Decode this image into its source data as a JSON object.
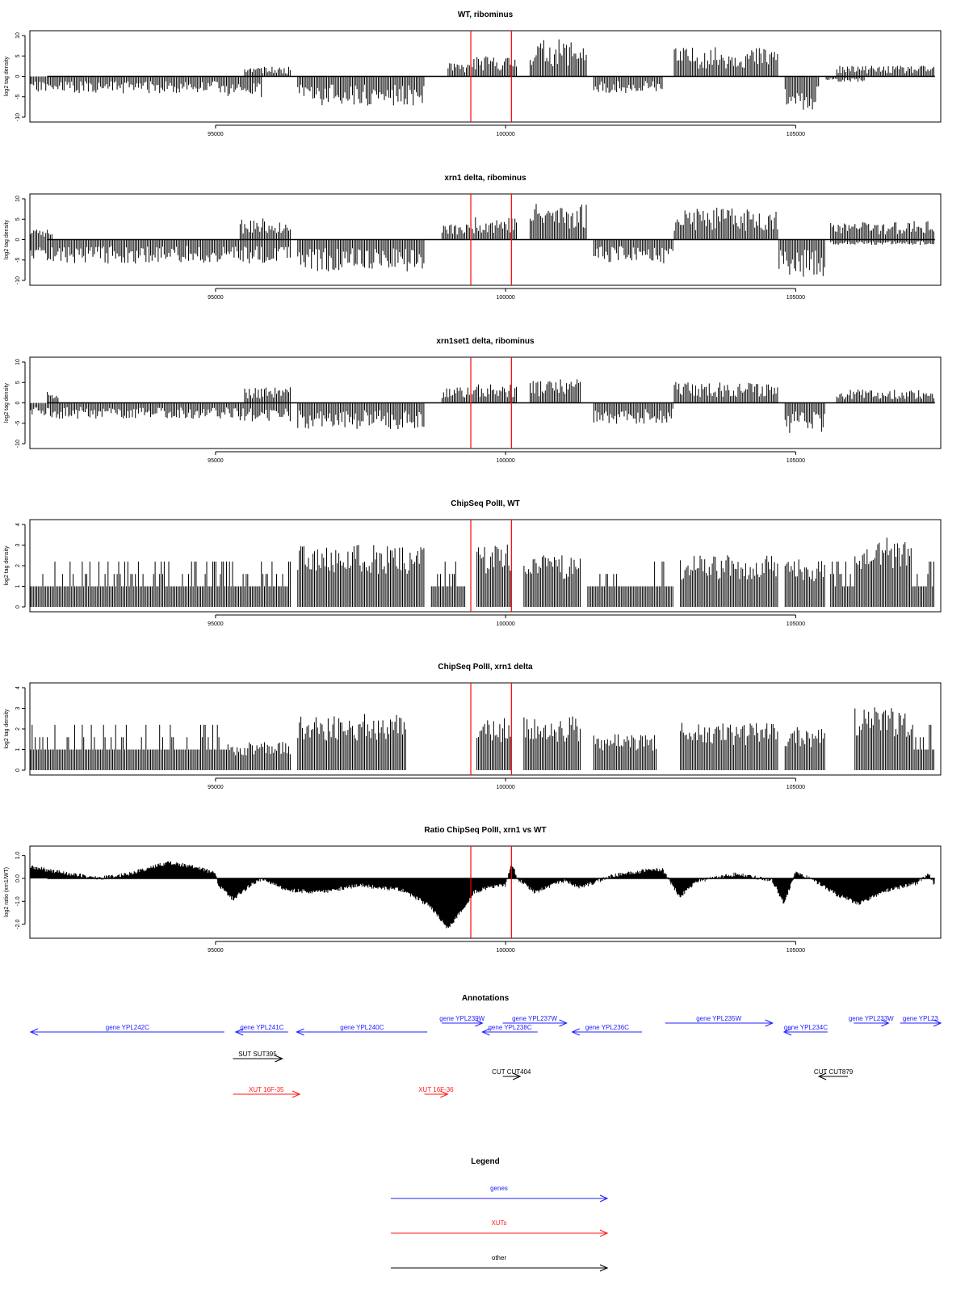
{
  "colors": {
    "genes": "#2020ff",
    "xuts": "#ff1a1a",
    "other": "#000000",
    "marker": "#ff0000",
    "data": "#000000"
  },
  "x_axis": {
    "xlim": [
      91800,
      107500
    ],
    "ticks": [
      95000,
      100000,
      105000
    ],
    "tick_labels": [
      "95000",
      "100000",
      "105000"
    ]
  },
  "markers": {
    "positions": [
      99400,
      100100
    ]
  },
  "chart_data": [
    {
      "type": "bar",
      "id": "wt_ribominus",
      "title": "WT, ribominus",
      "ylabel": "log2 tag density",
      "ylim": [
        -10,
        10
      ],
      "yticks": [
        10,
        5,
        0,
        -5,
        -10
      ],
      "ytick_labels": [
        "10",
        "5",
        "0",
        "-5",
        "-10"
      ],
      "bins": 600,
      "seed": 11,
      "segments": [
        {
          "from": 91800,
          "to": 95200,
          "mode": "neg",
          "amp": 3.2
        },
        {
          "from": 95200,
          "to": 95800,
          "mode": "neg",
          "amp": 4.0
        },
        {
          "from": 95500,
          "to": 96300,
          "mode": "pos",
          "amp": 1.8
        },
        {
          "from": 96400,
          "to": 98600,
          "mode": "neg",
          "amp": 5.5
        },
        {
          "from": 99000,
          "to": 99400,
          "mode": "pos",
          "amp": 2.5
        },
        {
          "from": 99400,
          "to": 100200,
          "mode": "pos",
          "amp": 3.8
        },
        {
          "from": 100400,
          "to": 101400,
          "mode": "pos",
          "amp": 7.0
        },
        {
          "from": 101500,
          "to": 102700,
          "mode": "neg",
          "amp": 3.2
        },
        {
          "from": 102900,
          "to": 104700,
          "mode": "pos",
          "amp": 5.5
        },
        {
          "from": 104800,
          "to": 105400,
          "mode": "neg",
          "amp": 6.5
        },
        {
          "from": 105500,
          "to": 106200,
          "mode": "neg",
          "amp": 1.0
        },
        {
          "from": 105700,
          "to": 107400,
          "mode": "pos",
          "amp": 2.0
        }
      ]
    },
    {
      "type": "bar",
      "id": "xrn1_ribominus",
      "title": "xrn1 delta, ribominus",
      "ylabel": "log2 tag density",
      "ylim": [
        -10,
        10
      ],
      "yticks": [
        10,
        5,
        0,
        -5,
        -10
      ],
      "ytick_labels": [
        "10",
        "5",
        "0",
        "-5",
        "-10"
      ],
      "bins": 600,
      "seed": 23,
      "segments": [
        {
          "from": 91800,
          "to": 95200,
          "mode": "neg",
          "amp": 4.5
        },
        {
          "from": 91800,
          "to": 92200,
          "mode": "pos",
          "amp": 2.0
        },
        {
          "from": 95200,
          "to": 96300,
          "mode": "neg",
          "amp": 4.5
        },
        {
          "from": 95400,
          "to": 96300,
          "mode": "pos",
          "amp": 4.0
        },
        {
          "from": 96400,
          "to": 98600,
          "mode": "neg",
          "amp": 6.0
        },
        {
          "from": 98900,
          "to": 99400,
          "mode": "pos",
          "amp": 3.0
        },
        {
          "from": 99400,
          "to": 100200,
          "mode": "pos",
          "amp": 4.5
        },
        {
          "from": 100400,
          "to": 101400,
          "mode": "pos",
          "amp": 7.0
        },
        {
          "from": 101500,
          "to": 102900,
          "mode": "neg",
          "amp": 4.5
        },
        {
          "from": 102900,
          "to": 104700,
          "mode": "pos",
          "amp": 6.0
        },
        {
          "from": 104700,
          "to": 105500,
          "mode": "neg",
          "amp": 7.0
        },
        {
          "from": 105600,
          "to": 107400,
          "mode": "pos",
          "amp": 3.5
        },
        {
          "from": 105600,
          "to": 107400,
          "mode": "neg",
          "amp": 1.0
        }
      ]
    },
    {
      "type": "bar",
      "id": "xrn1set1_ribominus",
      "title": "xrn1set1 delta, ribominus",
      "ylabel": "log2 tag density",
      "ylim": [
        -10,
        10
      ],
      "yticks": [
        10,
        5,
        0,
        -5,
        -10
      ],
      "ytick_labels": [
        "10",
        "5",
        "0",
        "-5",
        "-10"
      ],
      "bins": 600,
      "seed": 37,
      "segments": [
        {
          "from": 91800,
          "to": 95200,
          "mode": "neg",
          "amp": 3.0
        },
        {
          "from": 92100,
          "to": 92300,
          "mode": "pos",
          "amp": 2.5
        },
        {
          "from": 95200,
          "to": 96300,
          "mode": "neg",
          "amp": 3.5
        },
        {
          "from": 95500,
          "to": 96300,
          "mode": "pos",
          "amp": 3.0
        },
        {
          "from": 96400,
          "to": 98600,
          "mode": "neg",
          "amp": 5.0
        },
        {
          "from": 98900,
          "to": 99400,
          "mode": "pos",
          "amp": 3.0
        },
        {
          "from": 99400,
          "to": 100200,
          "mode": "pos",
          "amp": 3.5
        },
        {
          "from": 100400,
          "to": 101300,
          "mode": "pos",
          "amp": 4.5
        },
        {
          "from": 101500,
          "to": 102900,
          "mode": "neg",
          "amp": 4.0
        },
        {
          "from": 102900,
          "to": 104700,
          "mode": "pos",
          "amp": 4.0
        },
        {
          "from": 104800,
          "to": 105500,
          "mode": "neg",
          "amp": 6.0
        },
        {
          "from": 105700,
          "to": 107400,
          "mode": "pos",
          "amp": 2.5
        }
      ]
    },
    {
      "type": "bar",
      "id": "chipseq_wt",
      "title": "ChipSeq PolII, WT",
      "ylabel": "log2 tag density",
      "ylim": [
        0,
        4
      ],
      "yticks": [
        0,
        1,
        2,
        3,
        4
      ],
      "ytick_labels": [
        "0",
        "1",
        "2",
        "3",
        "4"
      ],
      "bins": 600,
      "seed": 53,
      "segments": [
        {
          "from": 91800,
          "to": 96300,
          "mode": "chip",
          "amp": 1.0
        },
        {
          "from": 96400,
          "to": 98600,
          "mode": "chip",
          "amp": 2.9
        },
        {
          "from": 98700,
          "to": 99300,
          "mode": "chip",
          "amp": 0.9
        },
        {
          "from": 99500,
          "to": 100100,
          "mode": "chip",
          "amp": 2.9
        },
        {
          "from": 100300,
          "to": 101300,
          "mode": "chip",
          "amp": 2.4
        },
        {
          "from": 101400,
          "to": 102900,
          "mode": "chip",
          "amp": 1.0
        },
        {
          "from": 103000,
          "to": 104700,
          "mode": "chip",
          "amp": 2.4
        },
        {
          "from": 104800,
          "to": 105500,
          "mode": "chip",
          "amp": 2.2
        },
        {
          "from": 105600,
          "to": 106000,
          "mode": "chip",
          "amp": 1.0
        },
        {
          "from": 106000,
          "to": 107000,
          "mode": "chip",
          "amp": 3.2
        },
        {
          "from": 107000,
          "to": 107400,
          "mode": "chip",
          "amp": 1.0
        }
      ]
    },
    {
      "type": "bar",
      "id": "chipseq_xrn1",
      "title": "ChipSeq PolII, xrn1 delta",
      "ylabel": "log2 tag density",
      "ylim": [
        0,
        4
      ],
      "yticks": [
        0,
        1,
        2,
        3,
        4
      ],
      "ytick_labels": [
        "0",
        "1",
        "2",
        "3",
        "4"
      ],
      "bins": 600,
      "seed": 71,
      "segments": [
        {
          "from": 91800,
          "to": 95200,
          "mode": "chip",
          "amp": 1.0
        },
        {
          "from": 95200,
          "to": 96300,
          "mode": "chip",
          "amp": 1.3
        },
        {
          "from": 96400,
          "to": 98300,
          "mode": "chip",
          "amp": 2.6
        },
        {
          "from": 99500,
          "to": 100100,
          "mode": "chip",
          "amp": 2.4
        },
        {
          "from": 100300,
          "to": 101300,
          "mode": "chip",
          "amp": 2.5
        },
        {
          "from": 101500,
          "to": 102600,
          "mode": "chip",
          "amp": 1.7
        },
        {
          "from": 103000,
          "to": 104700,
          "mode": "chip",
          "amp": 2.2
        },
        {
          "from": 104800,
          "to": 105500,
          "mode": "chip",
          "amp": 2.0
        },
        {
          "from": 106000,
          "to": 107000,
          "mode": "chip",
          "amp": 2.9
        },
        {
          "from": 107000,
          "to": 107400,
          "mode": "chip",
          "amp": 0.8
        }
      ]
    },
    {
      "type": "area",
      "id": "ratio_chipseq",
      "title": "Ratio ChipSeq PolII, xrn1 vs WT",
      "ylabel": "log2 ratio (xrn1/WT)",
      "ylim": [
        -2.4,
        1.2
      ],
      "yticks": [
        1.0,
        0.0,
        -1.0,
        -2.0
      ],
      "ytick_labels": [
        "1.0",
        "0.0",
        "-1.0",
        "-2.0"
      ],
      "bins": 600,
      "seed": 89,
      "knots": [
        [
          91800,
          0.5
        ],
        [
          92500,
          0.2
        ],
        [
          93000,
          0.0
        ],
        [
          93500,
          0.2
        ],
        [
          94200,
          0.7
        ],
        [
          94800,
          0.4
        ],
        [
          95000,
          0.2
        ],
        [
          95050,
          -0.3
        ],
        [
          95300,
          -0.9
        ],
        [
          95600,
          -0.3
        ],
        [
          95800,
          0.0
        ],
        [
          96200,
          -0.5
        ],
        [
          96800,
          -0.6
        ],
        [
          97500,
          -0.3
        ],
        [
          98200,
          -0.5
        ],
        [
          98700,
          -1.2
        ],
        [
          99000,
          -2.2
        ],
        [
          99300,
          -1.2
        ],
        [
          99450,
          -0.6
        ],
        [
          99700,
          -0.4
        ],
        [
          100000,
          -0.3
        ],
        [
          100100,
          0.7
        ],
        [
          100200,
          0.0
        ],
        [
          100500,
          -0.6
        ],
        [
          101000,
          -0.1
        ],
        [
          101300,
          -0.4
        ],
        [
          101800,
          0.1
        ],
        [
          102300,
          0.3
        ],
        [
          102700,
          0.4
        ],
        [
          103000,
          -0.8
        ],
        [
          103300,
          -0.1
        ],
        [
          104000,
          0.2
        ],
        [
          104600,
          -0.1
        ],
        [
          104800,
          -1.1
        ],
        [
          105000,
          0.3
        ],
        [
          105400,
          -0.2
        ],
        [
          105700,
          -0.7
        ],
        [
          106100,
          -1.1
        ],
        [
          106600,
          -0.5
        ],
        [
          107100,
          -0.2
        ],
        [
          107300,
          0.2
        ],
        [
          107400,
          -0.3
        ]
      ]
    }
  ],
  "annotations": {
    "title": "Annotations",
    "tracks": [
      {
        "label": "gene YPL242C",
        "category": "genes",
        "from": 91750,
        "to": 95150,
        "dir": "left",
        "row": 0
      },
      {
        "label": "gene YPL241C",
        "category": "genes",
        "from": 95350,
        "to": 96250,
        "dir": "left",
        "row": 0
      },
      {
        "label": "gene YPL240C",
        "category": "genes",
        "from": 96400,
        "to": 98650,
        "dir": "left",
        "row": 0
      },
      {
        "label": "gene YPL239W",
        "category": "genes",
        "from": 98900,
        "to": 99600,
        "dir": "right",
        "row": -1
      },
      {
        "label": "gene YPL238C",
        "category": "genes",
        "from": 99600,
        "to": 100550,
        "dir": "left",
        "row": 0
      },
      {
        "label": "gene YPL237W",
        "category": "genes",
        "from": 99950,
        "to": 101050,
        "dir": "right",
        "row": -1
      },
      {
        "label": "gene YPL236C",
        "category": "genes",
        "from": 101150,
        "to": 102350,
        "dir": "left",
        "row": 0
      },
      {
        "label": "gene YPL235W",
        "category": "genes",
        "from": 102750,
        "to": 104600,
        "dir": "right",
        "row": -1
      },
      {
        "label": "gene YPL234C",
        "category": "genes",
        "from": 104800,
        "to": 105550,
        "dir": "left",
        "row": 0
      },
      {
        "label": "gene YPL233W",
        "category": "genes",
        "from": 106000,
        "to": 106600,
        "dir": "right",
        "row": -1
      },
      {
        "label": "gene YPL23",
        "category": "genes",
        "from": 106800,
        "to": 107500,
        "dir": "right",
        "row": -1
      },
      {
        "label": "SUT SUT395",
        "category": "other",
        "from": 95300,
        "to": 96150,
        "dir": "right",
        "row": 1
      },
      {
        "label": "CUT CUT404",
        "category": "other",
        "from": 99950,
        "to": 100250,
        "dir": "right",
        "row": 2
      },
      {
        "label": "CUT CUT879",
        "category": "other",
        "from": 105400,
        "to": 105900,
        "dir": "left",
        "row": 2
      },
      {
        "label": "XUT 16F-35",
        "category": "xuts",
        "from": 95300,
        "to": 96450,
        "dir": "right",
        "row": 3
      },
      {
        "label": "XUT 16F-36",
        "category": "xuts",
        "from": 98600,
        "to": 99000,
        "dir": "right",
        "row": 3
      }
    ]
  },
  "legend": {
    "title": "Legend",
    "items": [
      {
        "label": "genes",
        "category": "genes"
      },
      {
        "label": "XUTs",
        "category": "xuts"
      },
      {
        "label": "other",
        "category": "other"
      }
    ]
  }
}
